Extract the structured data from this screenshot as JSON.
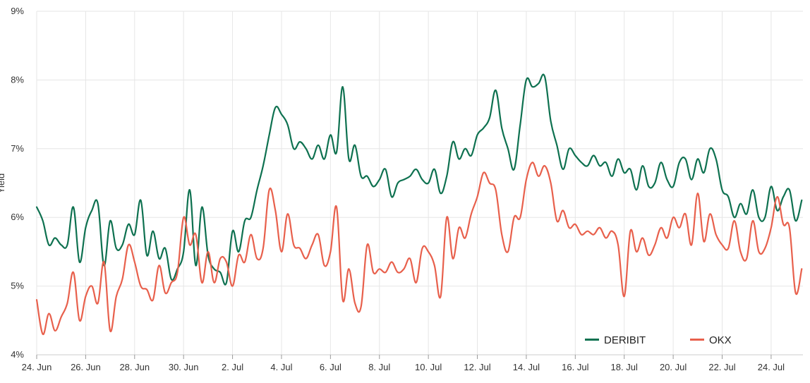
{
  "chart_data": {
    "type": "line",
    "title": "",
    "xlabel": "",
    "ylabel": "Yield",
    "ylim": [
      4,
      9
    ],
    "y_ticks": [
      4,
      5,
      6,
      7,
      8,
      9
    ],
    "y_tick_labels": [
      "4%",
      "5%",
      "6%",
      "7%",
      "8%",
      "9%"
    ],
    "x_range": [
      0,
      31.3
    ],
    "x_ticks": [
      0,
      2,
      4,
      6,
      8,
      10,
      12,
      14,
      16,
      18,
      20,
      22,
      24,
      26,
      28,
      30
    ],
    "x_tick_labels": [
      "24. Jun",
      "26. Jun",
      "28. Jun",
      "30. Jun",
      "2. Jul",
      "4. Jul",
      "6. Jul",
      "8. Jul",
      "10. Jul",
      "12. Jul",
      "14. Jul",
      "16. Jul",
      "18. Jul",
      "20. Jul",
      "22. Jul",
      "24. Jul"
    ],
    "grid": true,
    "legend_position": "bottom-right",
    "series": [
      {
        "name": "DERIBIT",
        "color": "#0e7150",
        "x": [
          0,
          0.25,
          0.5,
          0.75,
          1.0,
          1.25,
          1.5,
          1.75,
          2.0,
          2.25,
          2.5,
          2.75,
          3.0,
          3.25,
          3.5,
          3.75,
          4.0,
          4.25,
          4.5,
          4.75,
          5.0,
          5.25,
          5.5,
          5.75,
          6.0,
          6.25,
          6.5,
          6.75,
          7.0,
          7.25,
          7.5,
          7.75,
          8.0,
          8.25,
          8.5,
          8.75,
          9.0,
          9.25,
          9.5,
          9.75,
          10.0,
          10.25,
          10.5,
          10.75,
          11.0,
          11.25,
          11.5,
          11.75,
          12.0,
          12.25,
          12.5,
          12.75,
          13.0,
          13.25,
          13.5,
          13.75,
          14.0,
          14.25,
          14.5,
          14.75,
          15.0,
          15.25,
          15.5,
          15.75,
          16.0,
          16.25,
          16.5,
          16.75,
          17.0,
          17.25,
          17.5,
          17.75,
          18.0,
          18.25,
          18.5,
          18.75,
          19.0,
          19.25,
          19.5,
          19.75,
          20.0,
          20.25,
          20.5,
          20.75,
          21.0,
          21.25,
          21.5,
          21.75,
          22.0,
          22.25,
          22.5,
          22.75,
          23.0,
          23.25,
          23.5,
          23.75,
          24.0,
          24.25,
          24.5,
          24.75,
          25.0,
          25.25,
          25.5,
          25.75,
          26.0,
          26.25,
          26.5,
          26.75,
          27.0,
          27.25,
          27.5,
          27.75,
          28.0,
          28.25,
          28.5,
          28.75,
          29.0,
          29.25,
          29.5,
          29.75,
          30.0,
          30.25,
          30.5,
          30.75,
          31.0,
          31.25
        ],
        "values": [
          6.15,
          5.95,
          5.6,
          5.7,
          5.6,
          5.6,
          6.15,
          5.35,
          5.85,
          6.1,
          6.2,
          5.3,
          5.95,
          5.55,
          5.6,
          5.9,
          5.75,
          6.25,
          5.45,
          5.8,
          5.4,
          5.55,
          5.1,
          5.25,
          5.5,
          6.4,
          5.3,
          6.15,
          5.45,
          5.25,
          5.2,
          5.05,
          5.8,
          5.5,
          5.95,
          6.0,
          6.4,
          6.75,
          7.2,
          7.6,
          7.5,
          7.35,
          7.0,
          7.1,
          7.0,
          6.85,
          7.05,
          6.85,
          7.2,
          6.95,
          7.9,
          6.85,
          7.05,
          6.6,
          6.6,
          6.45,
          6.55,
          6.7,
          6.3,
          6.5,
          6.55,
          6.6,
          6.7,
          6.55,
          6.5,
          6.7,
          6.35,
          6.6,
          7.1,
          6.85,
          7.0,
          6.9,
          7.2,
          7.3,
          7.45,
          7.85,
          7.3,
          7.0,
          6.7,
          7.35,
          8.0,
          7.9,
          7.95,
          8.05,
          7.4,
          7.05,
          6.7,
          7.0,
          6.9,
          6.8,
          6.75,
          6.9,
          6.75,
          6.8,
          6.6,
          6.85,
          6.65,
          6.7,
          6.4,
          6.75,
          6.45,
          6.5,
          6.8,
          6.55,
          6.45,
          6.8,
          6.85,
          6.55,
          6.85,
          6.65,
          7.0,
          6.85,
          6.4,
          6.3,
          6.0,
          6.2,
          6.05,
          6.4,
          6.0,
          6.0,
          6.45,
          6.1,
          6.3,
          6.4,
          5.95,
          6.25
        ]
      },
      {
        "name": "OKX",
        "color": "#e8604c",
        "x": [
          0,
          0.25,
          0.5,
          0.75,
          1.0,
          1.25,
          1.5,
          1.75,
          2.0,
          2.25,
          2.5,
          2.75,
          3.0,
          3.25,
          3.5,
          3.75,
          4.0,
          4.25,
          4.5,
          4.75,
          5.0,
          5.25,
          5.5,
          5.75,
          6.0,
          6.25,
          6.5,
          6.75,
          7.0,
          7.25,
          7.5,
          7.75,
          8.0,
          8.25,
          8.5,
          8.75,
          9.0,
          9.25,
          9.5,
          9.75,
          10.0,
          10.25,
          10.5,
          10.75,
          11.0,
          11.25,
          11.5,
          11.75,
          12.0,
          12.25,
          12.5,
          12.75,
          13.0,
          13.25,
          13.5,
          13.75,
          14.0,
          14.25,
          14.5,
          14.75,
          15.0,
          15.25,
          15.5,
          15.75,
          16.0,
          16.25,
          16.5,
          16.75,
          17.0,
          17.25,
          17.5,
          17.75,
          18.0,
          18.25,
          18.5,
          18.75,
          19.0,
          19.25,
          19.5,
          19.75,
          20.0,
          20.25,
          20.5,
          20.75,
          21.0,
          21.25,
          21.5,
          21.75,
          22.0,
          22.25,
          22.5,
          22.75,
          23.0,
          23.25,
          23.5,
          23.75,
          24.0,
          24.25,
          24.5,
          24.75,
          25.0,
          25.25,
          25.5,
          25.75,
          26.0,
          26.25,
          26.5,
          26.75,
          27.0,
          27.25,
          27.5,
          27.75,
          28.0,
          28.25,
          28.5,
          28.75,
          29.0,
          29.25,
          29.5,
          29.75,
          30.0,
          30.25,
          30.5,
          30.75,
          31.0,
          31.25
        ],
        "values": [
          4.8,
          4.3,
          4.6,
          4.35,
          4.55,
          4.75,
          5.2,
          4.5,
          4.85,
          5.0,
          4.75,
          5.35,
          4.35,
          4.85,
          5.1,
          5.6,
          5.35,
          5.0,
          4.95,
          4.8,
          5.3,
          4.9,
          5.05,
          5.2,
          6.0,
          5.6,
          5.75,
          5.05,
          5.5,
          5.05,
          5.4,
          5.35,
          5.0,
          5.45,
          5.35,
          5.75,
          5.4,
          5.55,
          6.4,
          6.1,
          5.5,
          6.05,
          5.6,
          5.55,
          5.4,
          5.6,
          5.75,
          5.3,
          5.5,
          6.15,
          4.8,
          5.25,
          4.75,
          4.7,
          5.6,
          5.2,
          5.25,
          5.2,
          5.35,
          5.2,
          5.25,
          5.4,
          5.05,
          5.55,
          5.5,
          5.3,
          4.85,
          6.0,
          5.4,
          5.85,
          5.7,
          6.05,
          6.3,
          6.65,
          6.5,
          6.4,
          5.75,
          5.5,
          6.0,
          6.0,
          6.55,
          6.8,
          6.6,
          6.75,
          6.5,
          5.95,
          6.1,
          5.85,
          5.9,
          5.75,
          5.8,
          5.75,
          5.85,
          5.7,
          5.8,
          5.6,
          4.85,
          5.8,
          5.5,
          5.7,
          5.45,
          5.6,
          5.85,
          5.7,
          6.0,
          5.85,
          6.05,
          5.6,
          6.35,
          5.65,
          6.05,
          5.75,
          5.6,
          5.55,
          5.95,
          5.5,
          5.4,
          5.95,
          5.5,
          5.55,
          5.85,
          6.3,
          5.9,
          5.85,
          4.9,
          5.25
        ]
      }
    ]
  }
}
